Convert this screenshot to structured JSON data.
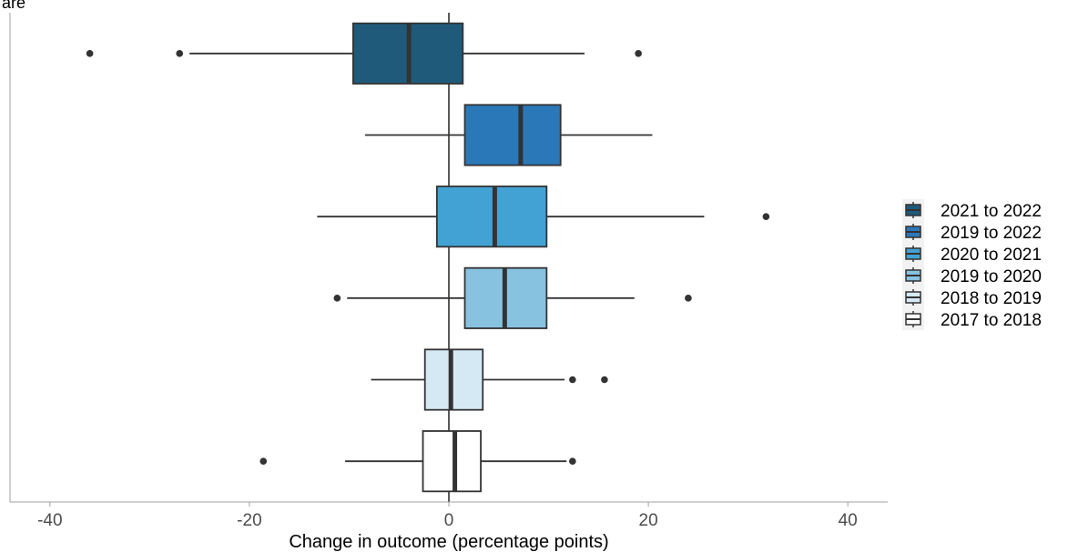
{
  "corner_text": "are",
  "chart_data": {
    "type": "boxplot",
    "orientation": "horizontal",
    "title": "",
    "xlabel": "Change in outcome (percentage points)",
    "ylabel": "",
    "xlim": [
      -44,
      44
    ],
    "xticks": [
      -40,
      -20,
      0,
      20,
      40
    ],
    "xtick_labels": [
      "-40",
      "-20",
      "0",
      "20",
      "40"
    ],
    "reference_line_x": 0,
    "grid": false,
    "legend_position": "right",
    "series": [
      {
        "name": "2021 to 2022",
        "color": "#1f5a7a",
        "whisker_low": -26,
        "q1": -9.6,
        "median": -4,
        "q3": 1.4,
        "whisker_high": 13.6,
        "outliers": [
          -36,
          -27,
          19
        ]
      },
      {
        "name": "2019 to 2022",
        "color": "#2b78b8",
        "whisker_low": -8.4,
        "q1": 1.6,
        "median": 7.2,
        "q3": 11.2,
        "whisker_high": 20.4,
        "outliers": []
      },
      {
        "name": "2020 to 2021",
        "color": "#42a2d4",
        "whisker_low": -13.2,
        "q1": -1.2,
        "median": 4.6,
        "q3": 9.8,
        "whisker_high": 25.6,
        "outliers": [
          31.8
        ]
      },
      {
        "name": "2019 to 2020",
        "color": "#87c3e0",
        "whisker_low": -10.2,
        "q1": 1.6,
        "median": 5.6,
        "q3": 9.8,
        "whisker_high": 18.6,
        "outliers": [
          -11.2,
          24
        ]
      },
      {
        "name": "2018 to 2019",
        "color": "#d5e9f5",
        "whisker_low": -7.8,
        "q1": -2.4,
        "median": 0.2,
        "q3": 3.4,
        "whisker_high": 11.6,
        "outliers": [
          12.4,
          15.6
        ]
      },
      {
        "name": "2017 to 2018",
        "color": "#ffffff",
        "whisker_low": -10.4,
        "q1": -2.6,
        "median": 0.6,
        "q3": 3.2,
        "whisker_high": 11.8,
        "outliers": [
          -18.6,
          12.4
        ]
      }
    ]
  }
}
